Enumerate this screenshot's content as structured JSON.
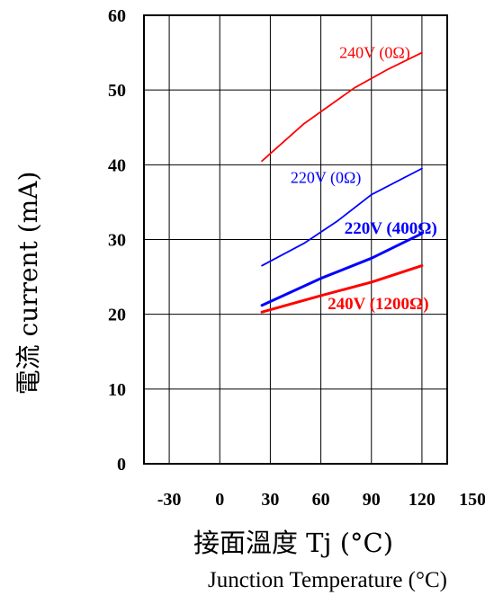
{
  "chart_data": {
    "type": "line",
    "title": "",
    "ylabel": "電流 current (mA)",
    "xlabel": "接面溫度 Tj (°C)",
    "xlabel_en": "Junction Temperature (°C)",
    "xlim": [
      -45,
      135
    ],
    "ylim": [
      0,
      60
    ],
    "x_ticks": [
      -30,
      0,
      30,
      60,
      90,
      120,
      150
    ],
    "y_ticks": [
      0,
      10,
      20,
      30,
      40,
      50,
      60
    ],
    "grid": true,
    "legend": "none",
    "series": [
      {
        "name": "240V (0Ω)",
        "color": "#ff0000",
        "bold": false,
        "x": [
          25,
          50,
          80,
          100,
          120
        ],
        "y": [
          40.5,
          45.5,
          50.3,
          52.8,
          55.0
        ]
      },
      {
        "name": "220V (0Ω)",
        "color": "#0000ff",
        "bold": false,
        "x": [
          25,
          50,
          70,
          90,
          120
        ],
        "y": [
          26.5,
          29.5,
          32.5,
          36.0,
          39.5
        ]
      },
      {
        "name": "220V (400Ω)",
        "color": "#0000ff",
        "bold": true,
        "x": [
          25,
          60,
          90,
          120
        ],
        "y": [
          21.2,
          24.8,
          27.5,
          30.8
        ]
      },
      {
        "name": "240V (1200Ω)",
        "color": "#ff0000",
        "bold": true,
        "x": [
          25,
          60,
          90,
          120
        ],
        "y": [
          20.3,
          22.5,
          24.3,
          26.5
        ]
      }
    ],
    "annotations": [
      {
        "text": "240V (0Ω)",
        "x": 71,
        "y": 54.3,
        "color": "#ff0000",
        "bold": false
      },
      {
        "text": "220V (0Ω)",
        "x": 42,
        "y": 37.6,
        "color": "#0000ff",
        "bold": false
      },
      {
        "text": "220V (400Ω)",
        "x": 74,
        "y": 30.8,
        "color": "#0000ff",
        "bold": true
      },
      {
        "text": "240V (1200Ω)",
        "x": 64,
        "y": 20.7,
        "color": "#ff0000",
        "bold": true
      }
    ]
  }
}
